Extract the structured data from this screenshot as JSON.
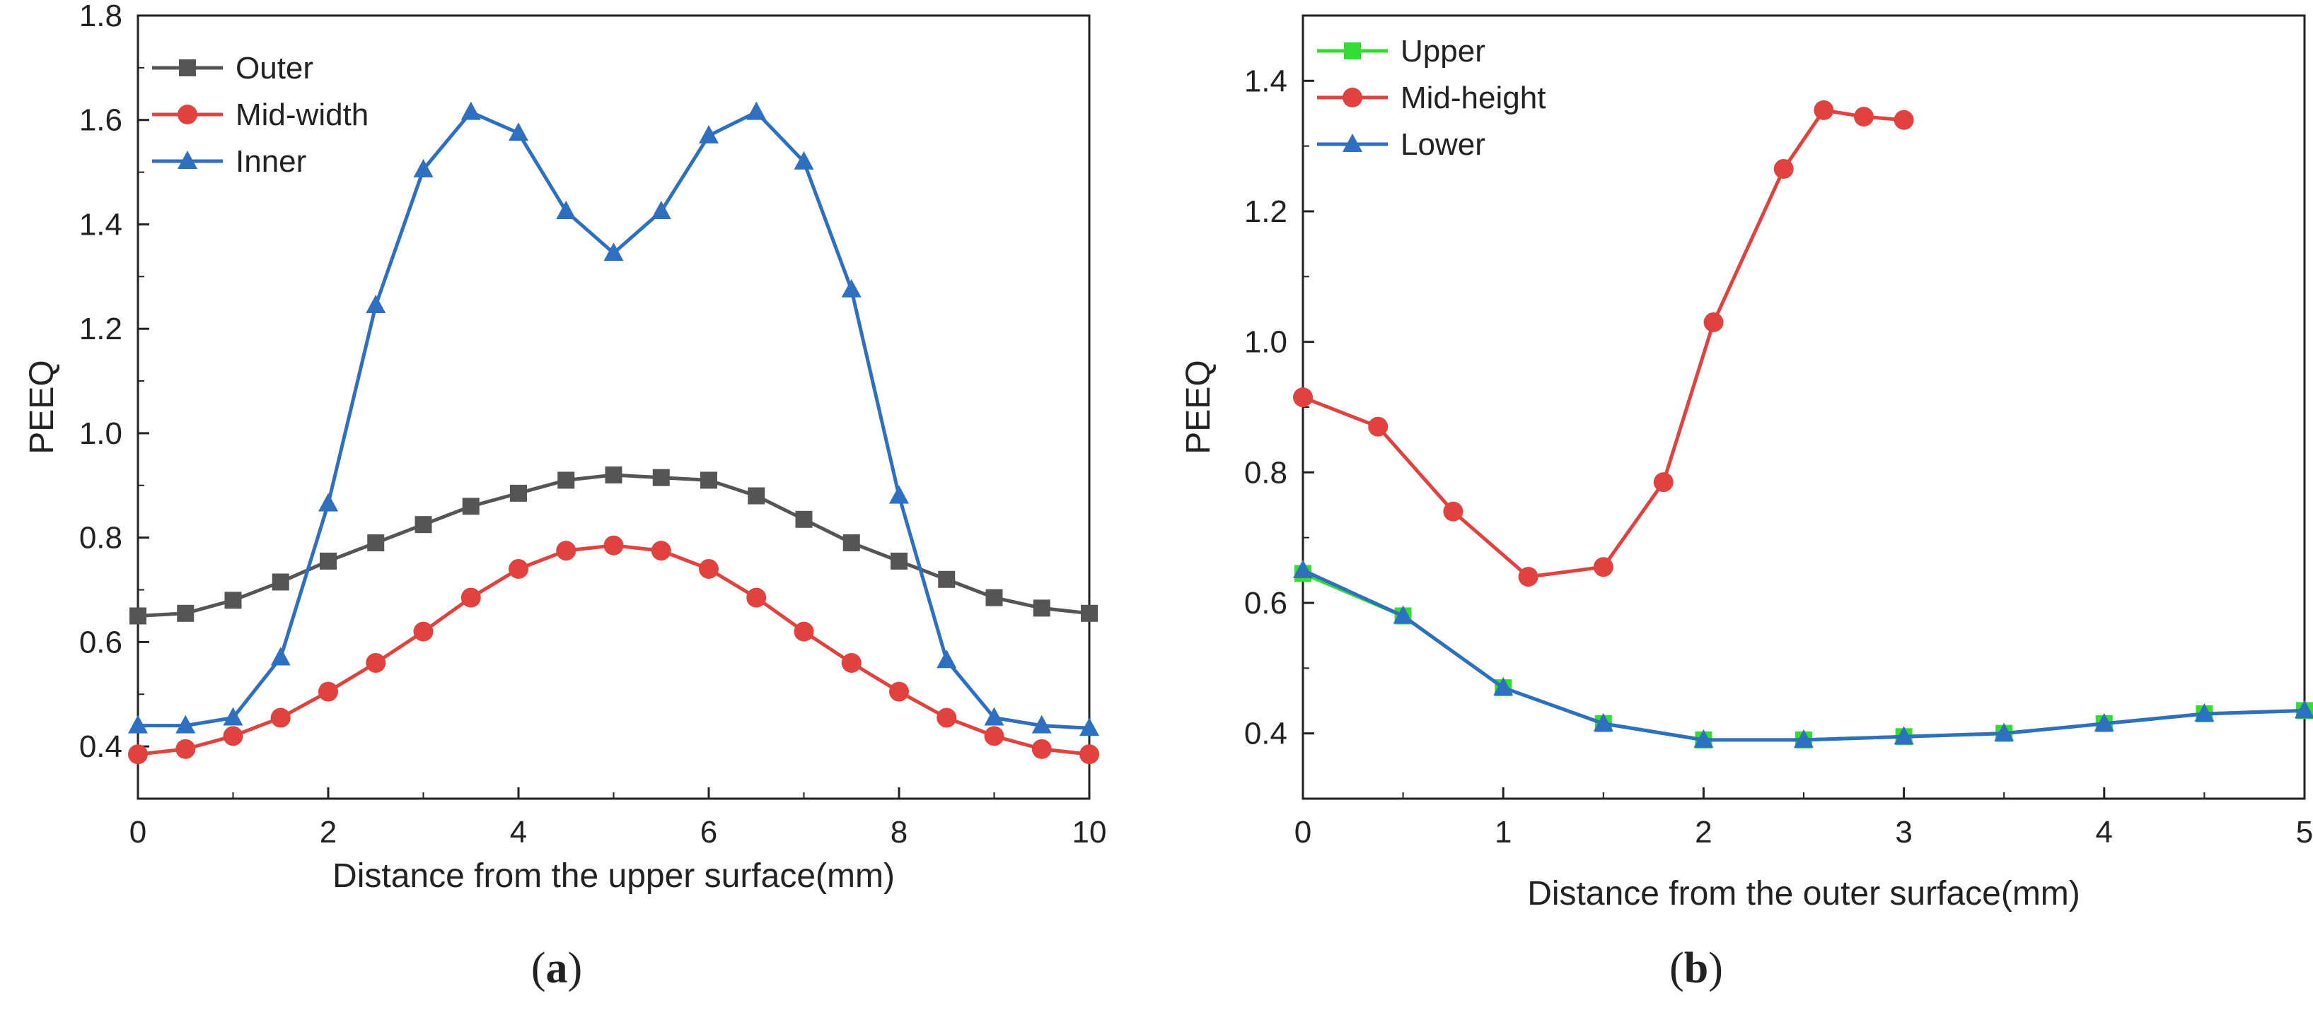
{
  "chart_data": [
    {
      "type": "line",
      "panel_label": "a",
      "xlabel": "Distance from the upper surface(mm)",
      "ylabel": "PEEQ",
      "xlim": [
        0,
        10
      ],
      "ylim": [
        0.3,
        1.8
      ],
      "xticks": [
        0,
        2,
        4,
        6,
        8,
        10
      ],
      "yticks": [
        0.4,
        0.6,
        0.8,
        1.0,
        1.2,
        1.4,
        1.6,
        1.8
      ],
      "xtick_labels": [
        "0",
        "2",
        "4",
        "6",
        "8",
        "10"
      ],
      "ytick_labels": [
        "0.4",
        "0.6",
        "0.8",
        "1.0",
        "1.2",
        "1.4",
        "1.6",
        "1.8"
      ],
      "legend_position": "top-left",
      "x": [
        0,
        0.5,
        1,
        1.5,
        2,
        2.5,
        3,
        3.5,
        4,
        4.5,
        5,
        5.5,
        6,
        6.5,
        7,
        7.5,
        8,
        8.5,
        9,
        9.5,
        10
      ],
      "series": [
        {
          "name": "Outer",
          "color": "#555555",
          "marker": "square",
          "values": [
            0.65,
            0.655,
            0.68,
            0.715,
            0.755,
            0.79,
            0.825,
            0.86,
            0.885,
            0.91,
            0.92,
            0.915,
            0.91,
            0.88,
            0.835,
            0.79,
            0.755,
            0.72,
            0.685,
            0.665,
            0.655
          ]
        },
        {
          "name": "Mid-width",
          "color": "#e0433f",
          "marker": "circle",
          "values": [
            0.385,
            0.395,
            0.42,
            0.455,
            0.505,
            0.56,
            0.62,
            0.685,
            0.74,
            0.775,
            0.785,
            0.775,
            0.74,
            0.685,
            0.62,
            0.56,
            0.505,
            0.455,
            0.42,
            0.395,
            0.385
          ]
        },
        {
          "name": "Inner",
          "color": "#2f6fc0",
          "marker": "triangle",
          "values": [
            0.44,
            0.44,
            0.455,
            0.57,
            0.865,
            1.245,
            1.505,
            1.615,
            1.575,
            1.425,
            1.345,
            1.425,
            1.57,
            1.615,
            1.52,
            1.275,
            0.88,
            0.565,
            0.455,
            0.44,
            0.435
          ]
        }
      ]
    },
    {
      "type": "line",
      "panel_label": "b",
      "xlabel": "Distance from the outer surface(mm)",
      "ylabel": "PEEQ",
      "xlim": [
        0,
        5
      ],
      "ylim": [
        0.3,
        1.5
      ],
      "xticks": [
        0,
        1,
        2,
        3,
        4,
        5
      ],
      "yticks": [
        0.4,
        0.6,
        0.8,
        1.0,
        1.2,
        1.4
      ],
      "xtick_labels": [
        "0",
        "1",
        "2",
        "3",
        "4",
        "5"
      ],
      "ytick_labels": [
        "0.4",
        "0.6",
        "0.8",
        "1.0",
        "1.2",
        "1.4"
      ],
      "legend_position": "top-left",
      "series": [
        {
          "name": "Upper",
          "color": "#33dd33",
          "marker": "square",
          "x": [
            0,
            0.5,
            1,
            1.5,
            2,
            2.5,
            3,
            3.5,
            4,
            4.5,
            5
          ],
          "values": [
            0.645,
            0.58,
            0.47,
            0.415,
            0.39,
            0.39,
            0.395,
            0.4,
            0.415,
            0.43,
            0.435
          ]
        },
        {
          "name": "Mid-height",
          "color": "#e0433f",
          "marker": "circle",
          "x": [
            0,
            0.375,
            0.75,
            1.125,
            1.5,
            1.8,
            2.05,
            2.4,
            2.6,
            2.8,
            3.0
          ],
          "values": [
            0.915,
            0.87,
            0.74,
            0.64,
            0.655,
            0.785,
            1.03,
            1.265,
            1.355,
            1.345,
            1.34
          ]
        },
        {
          "name": "Lower",
          "color": "#2f6fc0",
          "marker": "triangle",
          "x": [
            0,
            0.5,
            1,
            1.5,
            2,
            2.5,
            3,
            3.5,
            4,
            4.5,
            5
          ],
          "values": [
            0.65,
            0.58,
            0.47,
            0.415,
            0.39,
            0.39,
            0.395,
            0.4,
            0.415,
            0.43,
            0.435
          ]
        }
      ]
    }
  ]
}
